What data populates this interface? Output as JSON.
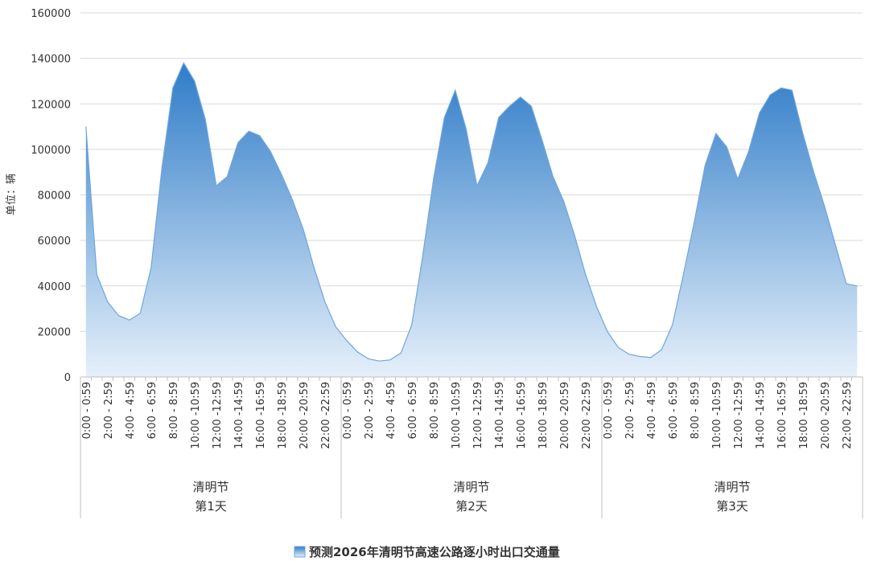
{
  "chart_data": {
    "type": "area",
    "y_label": "单位：辆",
    "categories": [
      "0:00 - 0:59",
      null,
      "2:00 - 2:59",
      null,
      "4:00 - 4:59",
      null,
      "6:00 - 6:59",
      null,
      "8:00 - 8:59",
      null,
      "10:00 -10:59",
      null,
      "12:00 -12:59",
      null,
      "14:00 -14:59",
      null,
      "16:00 -16:59",
      null,
      "18:00 -18:59",
      null,
      "20:00 -20:59",
      null,
      "22:00 -22:59",
      null,
      "0:00 - 0:59",
      null,
      "2:00 - 2:59",
      null,
      "4:00 - 4:59",
      null,
      "6:00 - 6:59",
      null,
      "8:00 - 8:59",
      null,
      "10:00 -10:59",
      null,
      "12:00 -12:59",
      null,
      "14:00 -14:59",
      null,
      "16:00 -16:59",
      null,
      "18:00 -18:59",
      null,
      "20:00 -20:59",
      null,
      "22:00 -22:59",
      null,
      "0:00 - 0:59",
      null,
      "2:00 - 2:59",
      null,
      "4:00 - 4:59",
      null,
      "6:00 - 6:59",
      null,
      "8:00 - 8:59",
      null,
      "10:00 -10:59",
      null,
      "12:00 -12:59",
      null,
      "14:00 -14:59",
      null,
      "16:00 -16:59",
      null,
      "18:00 -18:59",
      null,
      "20:00 -20:59",
      null,
      "22:00 -22:59",
      null
    ],
    "groups": [
      [
        "清明节",
        "第1天"
      ],
      [
        "清明节",
        "第2天"
      ],
      [
        "清明节",
        "第3天"
      ]
    ],
    "series": [
      {
        "name": "预测2026年清明节高速公路逐小时出口交通量",
        "color": "#2f7cc8",
        "values": [
          110000,
          45000,
          33000,
          27000,
          25000,
          28000,
          48000,
          92000,
          127000,
          138000,
          130000,
          113000,
          84000,
          88000,
          103000,
          108000,
          106000,
          99000,
          89000,
          78000,
          65000,
          48000,
          33000,
          22000,
          16000,
          11000,
          8000,
          7000,
          7500,
          10500,
          23000,
          53000,
          87000,
          114000,
          126000,
          109000,
          84000,
          94000,
          114000,
          119000,
          123000,
          119000,
          104000,
          88000,
          77000,
          62000,
          45000,
          31000,
          20000,
          13000,
          10000,
          9000,
          8500,
          12000,
          23000,
          45000,
          68000,
          93000,
          107000,
          101000,
          87000,
          99000,
          116000,
          124000,
          127000,
          126000,
          107000,
          90000,
          75000,
          58000,
          41000,
          40000
        ]
      }
    ],
    "ylim": [
      0,
      160000
    ],
    "yticks": [
      0,
      20000,
      40000,
      60000,
      80000,
      100000,
      120000,
      140000,
      160000
    ],
    "grid": true,
    "legend": "bottom"
  }
}
